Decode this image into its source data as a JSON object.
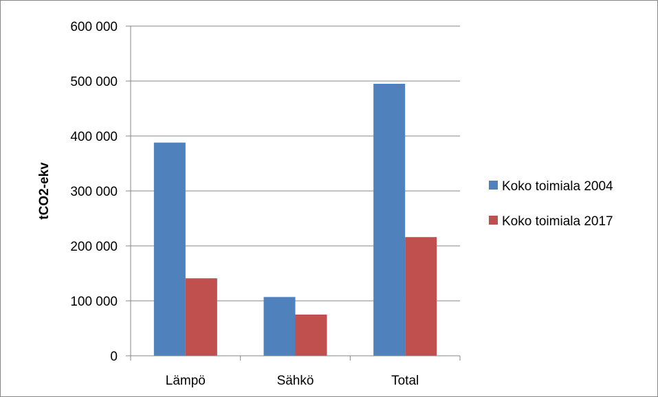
{
  "chart_data": {
    "type": "bar",
    "categories": [
      "Lämpö",
      "Sähkö",
      "Total"
    ],
    "series": [
      {
        "name": "Koko toimiala 2004",
        "values": [
          388000,
          107000,
          495000
        ],
        "color": "#4f81bd"
      },
      {
        "name": "Koko toimiala 2017",
        "values": [
          141000,
          75000,
          216000
        ],
        "color": "#c0504d"
      }
    ],
    "ylabel": "tCO2-ekv",
    "xlabel": "",
    "ylim": [
      0,
      600000
    ],
    "yticks": [
      0,
      100000,
      200000,
      300000,
      400000,
      500000,
      600000
    ],
    "ytick_labels": [
      "0",
      "100 000",
      "200 000",
      "300 000",
      "400 000",
      "500 000",
      "600 000"
    ],
    "grid": true,
    "legend_position": "right"
  }
}
